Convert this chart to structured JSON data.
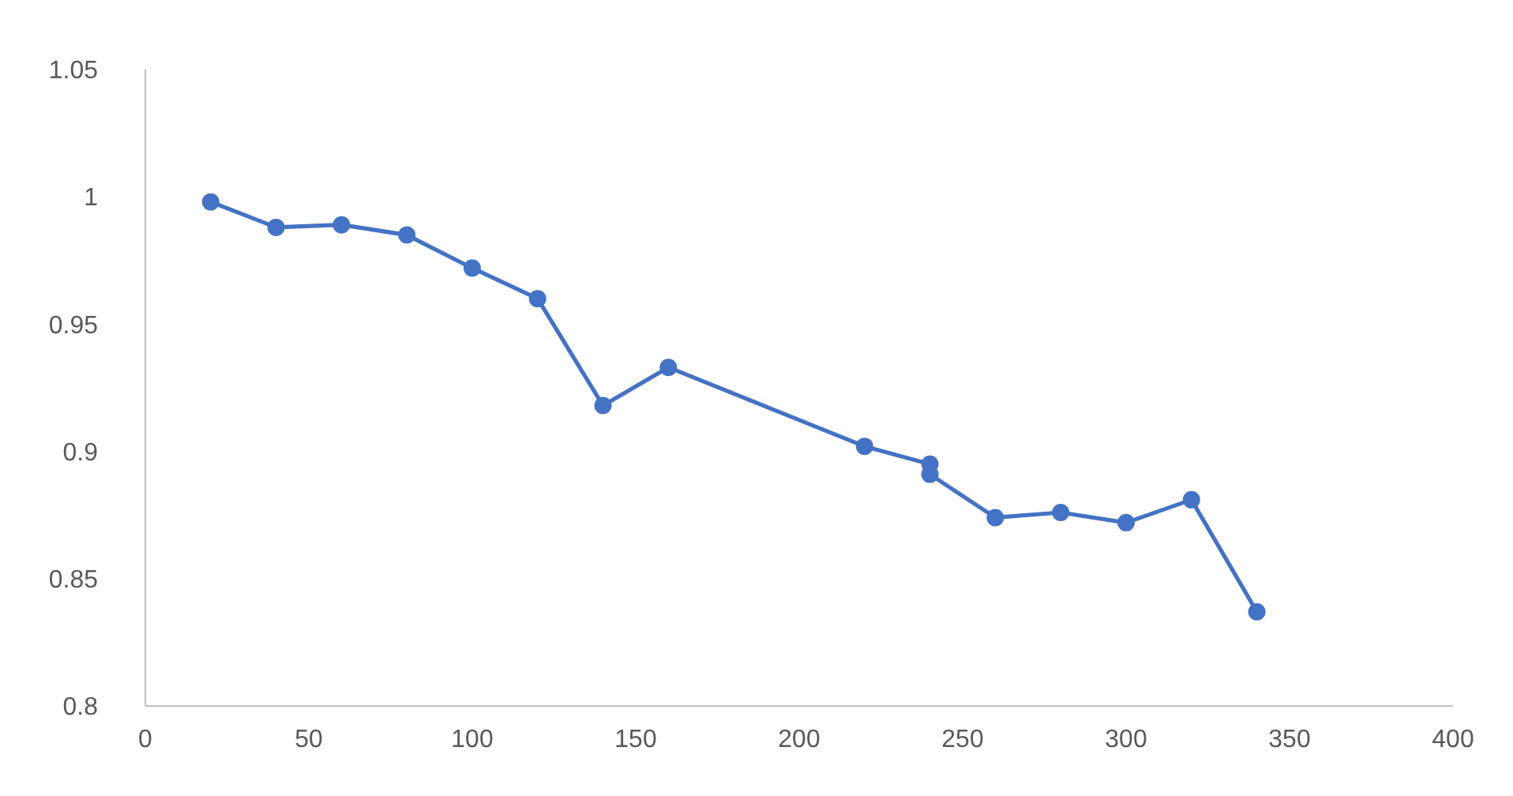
{
  "chart_data": {
    "type": "line",
    "x": [
      20,
      40,
      60,
      80,
      100,
      120,
      140,
      160,
      220,
      240,
      240,
      260,
      280,
      300,
      320,
      340
    ],
    "series": [
      {
        "color": "#4472c4",
        "values": [
          0.998,
          0.988,
          0.989,
          0.985,
          0.972,
          0.96,
          0.918,
          0.933,
          0.902,
          0.895,
          0.891,
          0.874,
          0.876,
          0.872,
          0.881,
          0.837
        ]
      }
    ],
    "xlim": [
      0,
      400
    ],
    "xticks": [
      0,
      50,
      100,
      150,
      200,
      250,
      300,
      350,
      400
    ],
    "ylim": [
      0.8,
      1.05
    ],
    "yticks": [
      {
        "value": 0.8,
        "label": "0.8"
      },
      {
        "value": 0.85,
        "label": "0.85"
      },
      {
        "value": 0.9,
        "label": "0.9"
      },
      {
        "value": 0.95,
        "label": "0.95"
      },
      {
        "value": 1,
        "label": "1"
      },
      {
        "value": 1.05,
        "label": "1.05"
      }
    ],
    "grid": false,
    "marker": "circle",
    "line_style": "solid"
  }
}
